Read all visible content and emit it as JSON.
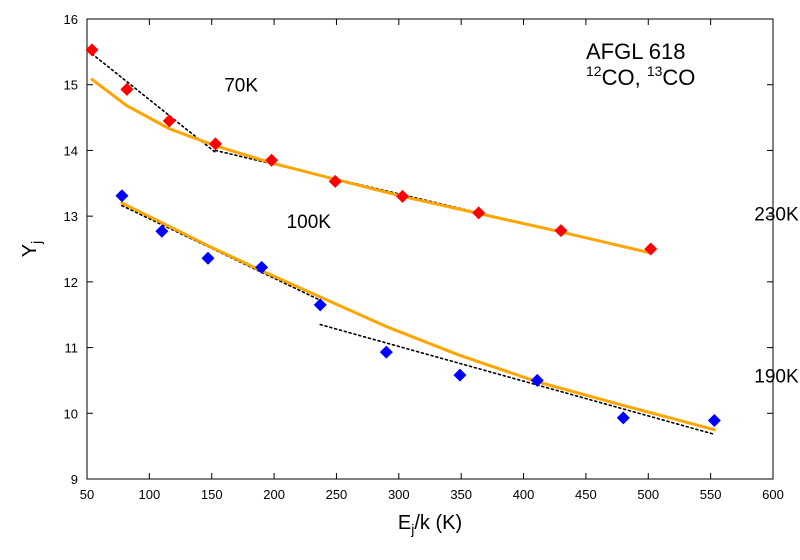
{
  "chart_data": {
    "type": "scatter",
    "title_lines": [
      {
        "parts": [
          {
            "text": "AFGL 618",
            "sup": false
          }
        ]
      },
      {
        "parts": [
          {
            "text": "12",
            "sup": true
          },
          {
            "text": "CO, ",
            "sup": false
          },
          {
            "text": "13",
            "sup": true
          },
          {
            "text": "CO",
            "sup": false
          }
        ]
      }
    ],
    "xlabel": {
      "main": "E",
      "sub": "j",
      "rest": "/k (K)"
    },
    "ylabel": {
      "main": "Y",
      "sub": "j"
    },
    "xlim": [
      50,
      600
    ],
    "ylim": [
      9,
      16
    ],
    "xticks": [
      50,
      100,
      150,
      200,
      250,
      300,
      350,
      400,
      450,
      500,
      550,
      600
    ],
    "yticks": [
      9,
      10,
      11,
      12,
      13,
      14,
      15,
      16
    ],
    "grid": false,
    "series": [
      {
        "kind": "points",
        "color": "#ff0000",
        "x": [
          54,
          82,
          116,
          153,
          198,
          249,
          303,
          364,
          430,
          502
        ],
        "y": [
          15.53,
          14.93,
          14.45,
          14.1,
          13.85,
          13.53,
          13.3,
          13.05,
          12.78,
          12.5
        ]
      },
      {
        "kind": "points",
        "color": "#0000ff",
        "x": [
          78,
          110,
          147,
          190,
          237,
          290,
          349,
          411,
          480,
          553
        ],
        "y": [
          13.31,
          12.77,
          12.36,
          12.22,
          11.65,
          10.93,
          10.58,
          10.5,
          9.93,
          9.89
        ]
      },
      {
        "kind": "curve",
        "color": "#ffa500",
        "x": [
          54,
          82,
          116,
          153,
          198,
          249,
          303,
          364,
          430,
          502
        ],
        "y": [
          15.08,
          14.68,
          14.33,
          14.07,
          13.81,
          13.56,
          13.3,
          13.04,
          12.76,
          12.44
        ]
      },
      {
        "kind": "curve",
        "color": "#ffa500",
        "x": [
          78,
          110,
          147,
          190,
          237,
          290,
          349,
          411,
          480,
          553
        ],
        "y": [
          13.2,
          12.9,
          12.55,
          12.17,
          11.77,
          11.32,
          10.88,
          10.48,
          10.12,
          9.75
        ]
      },
      {
        "kind": "fit",
        "color": "#000000",
        "x": [
          54,
          153
        ],
        "y": [
          15.47,
          13.97
        ]
      },
      {
        "kind": "fit",
        "color": "#000000",
        "x": [
          153,
          502
        ],
        "y": [
          14.0,
          12.43
        ]
      },
      {
        "kind": "fit",
        "color": "#000000",
        "x": [
          78,
          237
        ],
        "y": [
          13.16,
          11.72
        ]
      },
      {
        "kind": "fit",
        "color": "#000000",
        "x": [
          237,
          553
        ],
        "y": [
          11.35,
          9.68
        ]
      }
    ],
    "annotations": [
      {
        "text": "70K",
        "x": 160,
        "y": 14.9
      },
      {
        "text": "230K",
        "x": 585,
        "y": 12.93
      },
      {
        "text": "100K",
        "x": 210,
        "y": 12.82
      },
      {
        "text": "190K",
        "x": 585,
        "y": 10.47
      }
    ]
  }
}
